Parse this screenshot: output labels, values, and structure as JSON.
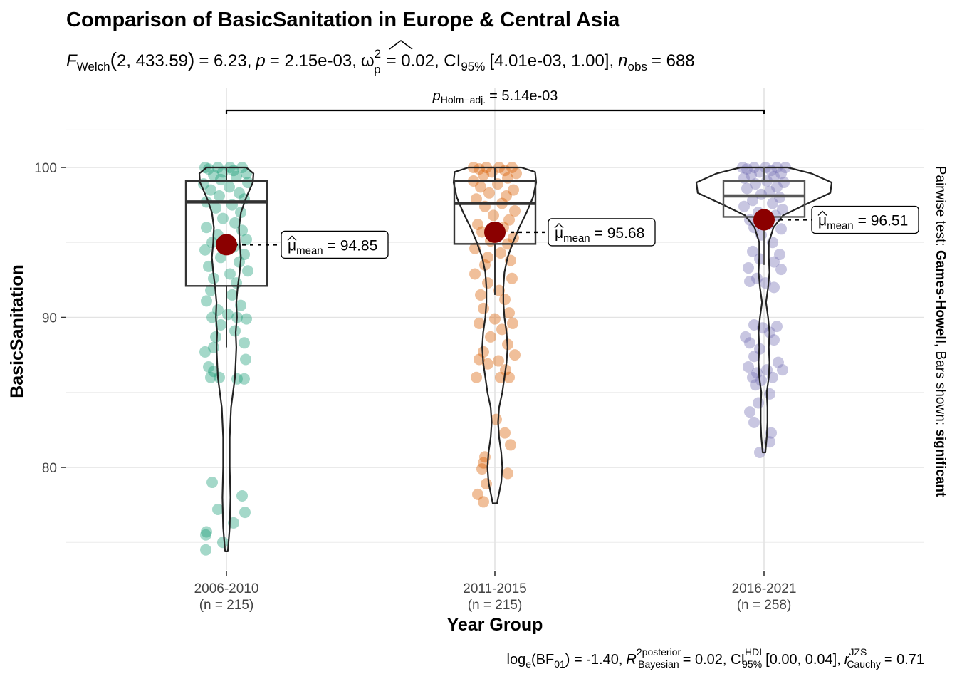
{
  "chart_data": {
    "type": "violin-box-scatter",
    "title": "Comparison of BasicSanitation in Europe & Central Asia",
    "subtitle": {
      "stat_symbol": "F",
      "stat_sub": "Welch",
      "df_args": "2, 433.59",
      "stat_value": "= 6.23,",
      "p_symbol": "p",
      "p_value": "= 2.15e-03,",
      "effect_symbol": "ω",
      "effect_sup": "2",
      "effect_sub": "p",
      "effect_value": "= 0.02, CI",
      "ci_sub": "95%",
      "ci_value": "[4.01e-03, 1.00],",
      "n_symbol": "n",
      "n_sub": "obs",
      "n_value": "= 688"
    },
    "xlabel": "Year Group",
    "ylabel": "BasicSanitation",
    "ylim": [
      73.0,
      104.5
    ],
    "y_ticks": [
      80,
      90,
      100
    ],
    "grid": true,
    "groups": [
      {
        "label": "2006-2010",
        "n_label": "(n = 215)",
        "color": "#1B9E77",
        "mean": 94.85,
        "mean_label": "= 94.85",
        "box": {
          "q1": 92.1,
          "median": 97.7,
          "q3": 99.1,
          "whisker_low": 88.0,
          "whisker_high": 100.0
        },
        "violin": {
          "min": 74.4,
          "max": 100.0,
          "profile": [
            [
              74.4,
              0.2
            ],
            [
              76,
              0.5
            ],
            [
              78,
              0.6
            ],
            [
              80,
              0.5
            ],
            [
              82,
              0.5
            ],
            [
              84,
              0.7
            ],
            [
              86,
              1.3
            ],
            [
              87,
              1.4
            ],
            [
              88,
              1.5
            ],
            [
              89,
              1.4
            ],
            [
              90,
              1.6
            ],
            [
              91,
              1.5
            ],
            [
              92,
              1.7
            ],
            [
              93,
              2.0
            ],
            [
              94,
              2.2
            ],
            [
              95,
              2.0
            ],
            [
              96,
              1.9
            ],
            [
              97,
              2.2
            ],
            [
              98,
              3.0
            ],
            [
              99,
              4.0
            ],
            [
              99.6,
              4.1
            ],
            [
              100,
              3.0
            ]
          ]
        },
        "points": [
          [
            100,
            -30
          ],
          [
            100,
            -12
          ],
          [
            100,
            5
          ],
          [
            100,
            22
          ],
          [
            99.9,
            -25
          ],
          [
            99.8,
            10
          ],
          [
            99.7,
            -5
          ],
          [
            99.6,
            28
          ],
          [
            99.5,
            -18
          ],
          [
            99.4,
            14
          ],
          [
            99.2,
            -8
          ],
          [
            99.0,
            30
          ],
          [
            98.9,
            -32
          ],
          [
            98.7,
            4
          ],
          [
            98.5,
            -22
          ],
          [
            98.3,
            18
          ],
          [
            98.1,
            -10
          ],
          [
            97.9,
            25
          ],
          [
            97.7,
            -28
          ],
          [
            97.5,
            8
          ],
          [
            97.3,
            -15
          ],
          [
            97.0,
            20
          ],
          [
            96.6,
            -5
          ],
          [
            96.3,
            12
          ],
          [
            96.0,
            -28
          ],
          [
            95.8,
            22
          ],
          [
            95.5,
            -12
          ],
          [
            95.2,
            28
          ],
          [
            95.0,
            -20
          ],
          [
            94.7,
            10
          ],
          [
            94.5,
            -30
          ],
          [
            94.2,
            25
          ],
          [
            94.0,
            -8
          ],
          [
            93.7,
            18
          ],
          [
            93.4,
            -25
          ],
          [
            93.1,
            30
          ],
          [
            92.9,
            5
          ],
          [
            92.6,
            -18
          ],
          [
            92.3,
            14
          ],
          [
            91.8,
            -22
          ],
          [
            91.5,
            8
          ],
          [
            91.1,
            -28
          ],
          [
            90.8,
            20
          ],
          [
            90.5,
            -12
          ],
          [
            90.2,
            2
          ],
          [
            90.0,
            15
          ],
          [
            90.0,
            -20
          ],
          [
            89.9,
            28
          ],
          [
            89.5,
            -8
          ],
          [
            89.1,
            12
          ],
          [
            88.7,
            -15
          ],
          [
            88.3,
            25
          ],
          [
            88.0,
            -18
          ],
          [
            87.7,
            -30
          ],
          [
            87.2,
            27
          ],
          [
            86.7,
            -25
          ],
          [
            86.4,
            -18
          ],
          [
            86.0,
            -22
          ],
          [
            86.0,
            -10
          ],
          [
            85.9,
            15
          ],
          [
            85.9,
            25
          ],
          [
            79.0,
            -20
          ],
          [
            78.1,
            22
          ],
          [
            77.2,
            -12
          ],
          [
            77.0,
            26
          ],
          [
            76.3,
            10
          ],
          [
            75.7,
            -28
          ],
          [
            75.5,
            -29
          ],
          [
            75.0,
            -5
          ],
          [
            74.5,
            -29
          ]
        ]
      },
      {
        "label": "2011-2015",
        "n_label": "(n = 215)",
        "color": "#D95F02",
        "mean": 95.68,
        "mean_label": "= 95.68",
        "box": {
          "q1": 94.9,
          "median": 97.6,
          "q3": 99.1,
          "whisker_low": 91.5,
          "whisker_high": 100.0
        },
        "violin": {
          "min": 77.6,
          "max": 100.0,
          "profile": [
            [
              77.6,
              0.2
            ],
            [
              79,
              0.6
            ],
            [
              80,
              0.7
            ],
            [
              81,
              0.6
            ],
            [
              82,
              0.4
            ],
            [
              83,
              0.3
            ],
            [
              84,
              0.4
            ],
            [
              85,
              0.7
            ],
            [
              86,
              0.9
            ],
            [
              87,
              1.1
            ],
            [
              88,
              1.2
            ],
            [
              89,
              1.1
            ],
            [
              90,
              0.9
            ],
            [
              91,
              0.8
            ],
            [
              92,
              0.8
            ],
            [
              93,
              0.9
            ],
            [
              94,
              1.2
            ],
            [
              95,
              1.7
            ],
            [
              96,
              2.3
            ],
            [
              97,
              3.0
            ],
            [
              98,
              3.6
            ],
            [
              99,
              3.9
            ],
            [
              99.7,
              3.8
            ],
            [
              100,
              2.5
            ]
          ]
        },
        "points": [
          [
            100,
            -30
          ],
          [
            100,
            -12
          ],
          [
            100,
            6
          ],
          [
            100,
            24
          ],
          [
            99.9,
            -22
          ],
          [
            99.8,
            14
          ],
          [
            99.7,
            -4
          ],
          [
            99.6,
            30
          ],
          [
            99.5,
            -16
          ],
          [
            99.3,
            18
          ],
          [
            99.1,
            -30
          ],
          [
            98.9,
            4
          ],
          [
            98.7,
            -20
          ],
          [
            98.5,
            26
          ],
          [
            98.3,
            -8
          ],
          [
            98.1,
            16
          ],
          [
            97.9,
            -26
          ],
          [
            97.6,
            10
          ],
          [
            97.4,
            -14
          ],
          [
            97.1,
            28
          ],
          [
            96.8,
            -2
          ],
          [
            96.5,
            20
          ],
          [
            96.2,
            -24
          ],
          [
            96.0,
            12
          ],
          [
            95.7,
            -18
          ],
          [
            95.3,
            26
          ],
          [
            95.1,
            -6
          ],
          [
            94.9,
            18
          ],
          [
            94.6,
            -28
          ],
          [
            94.3,
            8
          ],
          [
            94.0,
            -10
          ],
          [
            93.8,
            22
          ],
          [
            93.5,
            -14
          ],
          [
            92.9,
            -28
          ],
          [
            92.6,
            24
          ],
          [
            92.3,
            -10
          ],
          [
            91.8,
            6
          ],
          [
            91.5,
            -20
          ],
          [
            91.2,
            14
          ],
          [
            90.6,
            -16
          ],
          [
            90.3,
            20
          ],
          [
            89.9,
            0
          ],
          [
            89.6,
            -22
          ],
          [
            89.6,
            25
          ],
          [
            89.2,
            10
          ],
          [
            88.7,
            -6
          ],
          [
            88.2,
            18
          ],
          [
            87.7,
            -16
          ],
          [
            87.5,
            28
          ],
          [
            87.2,
            -22
          ],
          [
            87.1,
            5
          ],
          [
            86.9,
            -10
          ],
          [
            86.5,
            15
          ],
          [
            86.0,
            -26
          ],
          [
            86.0,
            8
          ],
          [
            86.0,
            20
          ],
          [
            83.2,
            2
          ],
          [
            82.3,
            14
          ],
          [
            81.5,
            22
          ],
          [
            80.7,
            -14
          ],
          [
            80.3,
            -16
          ],
          [
            79.9,
            -18
          ],
          [
            79.6,
            18
          ],
          [
            78.9,
            -12
          ],
          [
            78.2,
            -24
          ],
          [
            77.7,
            -16
          ]
        ]
      },
      {
        "label": "2016-2021",
        "n_label": "(n = 258)",
        "color": "#7570B3",
        "mean": 96.51,
        "mean_label": "= 96.51",
        "box": {
          "q1": 96.7,
          "median": 98.1,
          "q3": 99.1,
          "whisker_low": 93.5,
          "whisker_high": 100.0
        },
        "violin": {
          "min": 81.0,
          "max": 100.0,
          "profile": [
            [
              81,
              0.2
            ],
            [
              82,
              0.4
            ],
            [
              83,
              0.5
            ],
            [
              84,
              0.5
            ],
            [
              85,
              0.4
            ],
            [
              86,
              0.7
            ],
            [
              87,
              0.8
            ],
            [
              88,
              0.7
            ],
            [
              89,
              0.8
            ],
            [
              90,
              0.6
            ],
            [
              91,
              0.3
            ],
            [
              92,
              0.6
            ],
            [
              93,
              0.8
            ],
            [
              94,
              0.7
            ],
            [
              95,
              0.7
            ],
            [
              96,
              1.4
            ],
            [
              96.8,
              2.8
            ],
            [
              97.5,
              6.0
            ],
            [
              98.3,
              9.8
            ],
            [
              99.0,
              10.0
            ],
            [
              99.6,
              7.0
            ],
            [
              100,
              3.5
            ]
          ]
        },
        "points": [
          [
            100,
            -30
          ],
          [
            100,
            -14
          ],
          [
            100,
            2
          ],
          [
            100,
            18
          ],
          [
            100,
            30
          ],
          [
            99.9,
            -24
          ],
          [
            99.8,
            10
          ],
          [
            99.7,
            -6
          ],
          [
            99.6,
            24
          ],
          [
            99.5,
            -18
          ],
          [
            99.4,
            14
          ],
          [
            99.3,
            -28
          ],
          [
            99.1,
            4
          ],
          [
            99.0,
            28
          ],
          [
            98.9,
            -12
          ],
          [
            98.7,
            18
          ],
          [
            98.6,
            -24
          ],
          [
            98.4,
            8
          ],
          [
            98.2,
            -4
          ],
          [
            98.0,
            22
          ],
          [
            97.8,
            -16
          ],
          [
            97.6,
            12
          ],
          [
            97.4,
            -28
          ],
          [
            97.2,
            26
          ],
          [
            97.0,
            -8
          ],
          [
            96.8,
            16
          ],
          [
            96.5,
            -20
          ],
          [
            96.2,
            6
          ],
          [
            96.0,
            -14
          ],
          [
            95.9,
            24
          ],
          [
            95.5,
            -4
          ],
          [
            95.0,
            12
          ],
          [
            94.4,
            -16
          ],
          [
            94.2,
            22
          ],
          [
            93.9,
            -6
          ],
          [
            93.7,
            14
          ],
          [
            93.3,
            -22
          ],
          [
            93.2,
            24
          ],
          [
            92.6,
            -10
          ],
          [
            92.4,
            -20
          ],
          [
            92.3,
            2
          ],
          [
            92.0,
            14
          ],
          [
            89.5,
            -14
          ],
          [
            89.4,
            18
          ],
          [
            89.3,
            -2
          ],
          [
            89.0,
            8
          ],
          [
            88.7,
            -26
          ],
          [
            88.3,
            -20
          ],
          [
            88.5,
            14
          ],
          [
            87.9,
            -6
          ],
          [
            87.4,
            -14
          ],
          [
            87.0,
            20
          ],
          [
            86.7,
            -22
          ],
          [
            86.5,
            4
          ],
          [
            86.5,
            26
          ],
          [
            86.3,
            -10
          ],
          [
            86.0,
            -16
          ],
          [
            86.0,
            12
          ],
          [
            85.8,
            -4
          ],
          [
            85.5,
            -12
          ],
          [
            84.9,
            8
          ],
          [
            84.3,
            -8
          ],
          [
            83.7,
            -20
          ],
          [
            83.0,
            -14
          ],
          [
            82.3,
            10
          ],
          [
            81.7,
            8
          ],
          [
            81.0,
            -6
          ]
        ]
      }
    ],
    "pairwise_bracket": {
      "from": "2006-2010",
      "to": "2016-2021",
      "p_symbol": "p",
      "p_sub": "Holm−adj.",
      "p_value": "= 5.14e-03"
    },
    "right_caption": {
      "prefix": "Pairwise test: ",
      "method": "Games-Howell",
      "middle": ", Bars shown: ",
      "shown": "significant"
    },
    "mean_symbol": "μ",
    "mean_sub": "mean",
    "bayes_caption": {
      "log_text": "log",
      "log_sub": "e",
      "bf_text": "(BF",
      "bf_sub": "01",
      "bf_value": ") = -1.40,",
      "r2_symbol": "R",
      "r2_sup": "2",
      "r2_sup_word": "posterior",
      "r2_sub": "Bayesian",
      "r2_value": "= 0.02, CI",
      "ci_sup": "HDI",
      "ci_sub": "95%",
      "ci_value": "[0.00, 0.04],",
      "r_symbol": "r",
      "r_sup": "JZS",
      "r_sub": "Cauchy",
      "r_value": "= 0.71"
    }
  }
}
